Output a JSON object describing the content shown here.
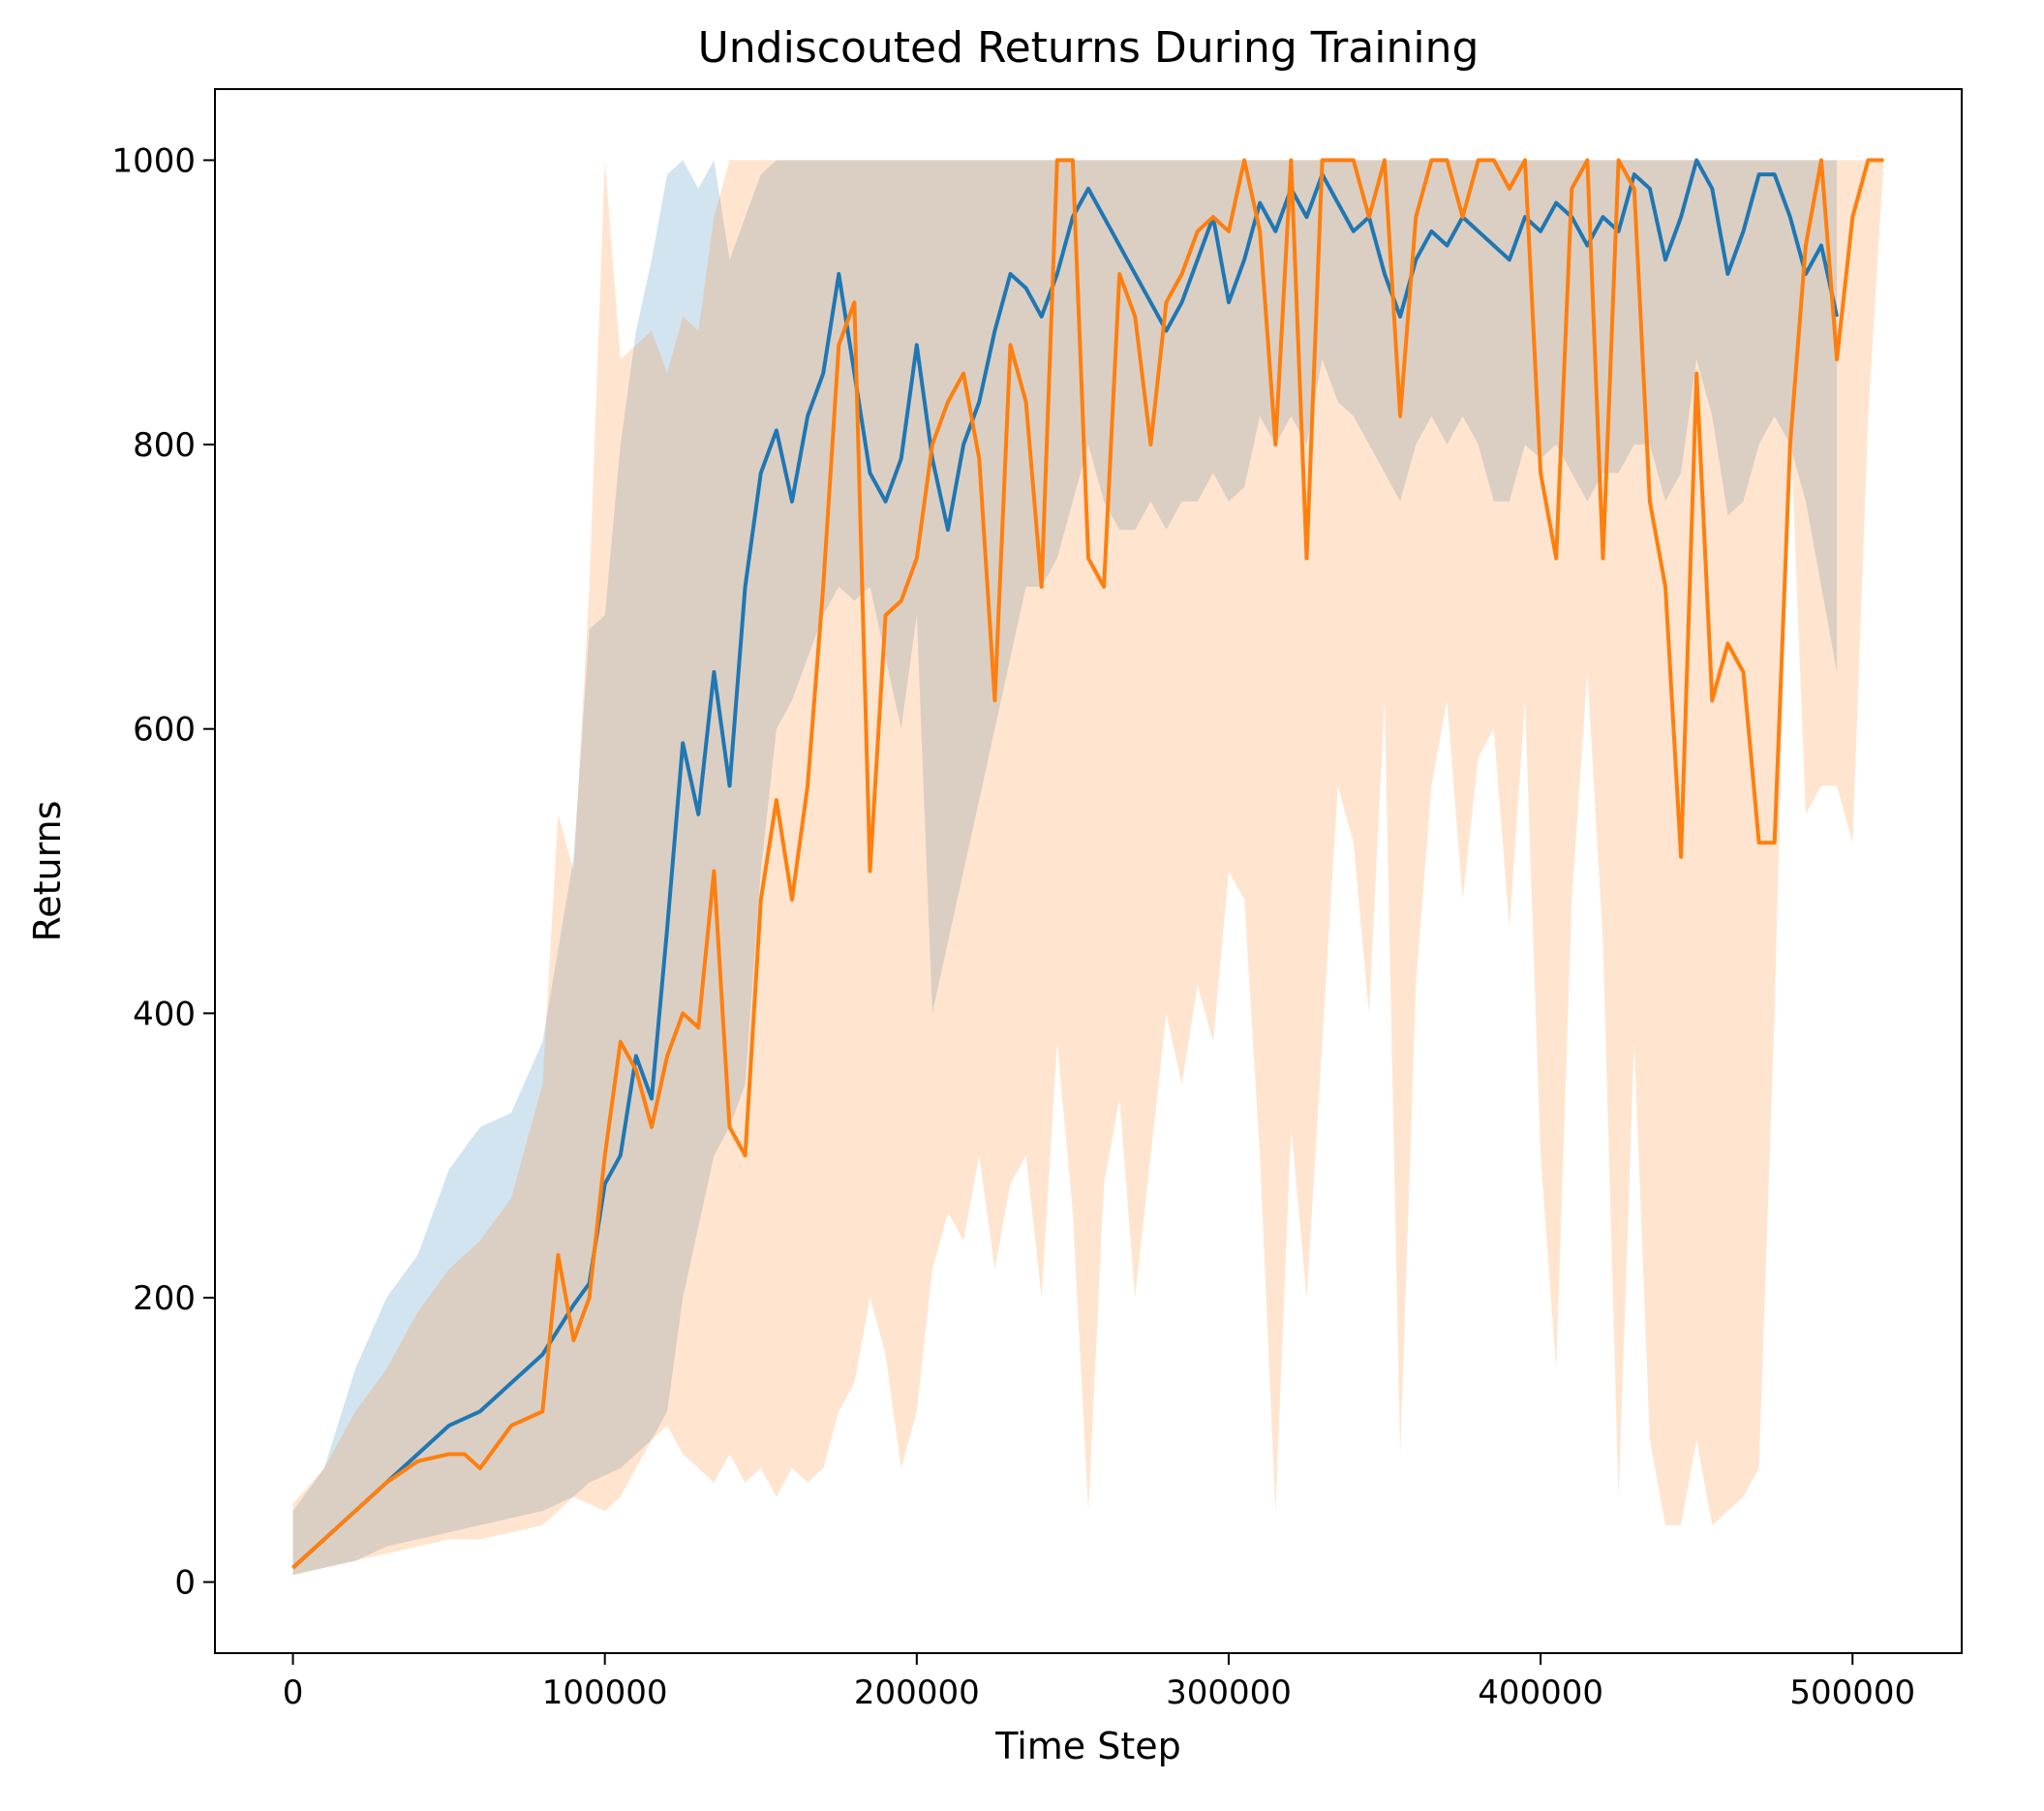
{
  "chart_data": {
    "type": "line",
    "title": "Undiscouted Returns During Training",
    "xlabel": "Time Step",
    "ylabel": "Returns",
    "xlim": [
      -25000,
      535000
    ],
    "ylim": [
      -50,
      1050
    ],
    "xticks": [
      0,
      100000,
      200000,
      300000,
      400000,
      500000
    ],
    "xtick_labels": [
      "0",
      "100000",
      "200000",
      "300000",
      "400000",
      "500000"
    ],
    "yticks": [
      0,
      200,
      400,
      600,
      800,
      1000
    ],
    "ytick_labels": [
      "0",
      "200",
      "400",
      "600",
      "800",
      "1000"
    ],
    "grid": false,
    "legend": false,
    "series": [
      {
        "color": "#1f77b4",
        "band_color": "#1f77b4",
        "band_opacity": 0.2,
        "x": [
          0,
          10000,
          20000,
          30000,
          40000,
          50000,
          60000,
          70000,
          80000,
          90000,
          95000,
          100000,
          105000,
          110000,
          115000,
          120000,
          125000,
          130000,
          135000,
          140000,
          145000,
          150000,
          155000,
          160000,
          165000,
          170000,
          175000,
          180000,
          185000,
          190000,
          195000,
          200000,
          205000,
          210000,
          215000,
          220000,
          225000,
          230000,
          235000,
          240000,
          245000,
          250000,
          255000,
          260000,
          265000,
          270000,
          275000,
          280000,
          285000,
          290000,
          295000,
          300000,
          305000,
          310000,
          315000,
          320000,
          325000,
          330000,
          335000,
          340000,
          345000,
          350000,
          355000,
          360000,
          365000,
          370000,
          375000,
          380000,
          385000,
          390000,
          395000,
          400000,
          405000,
          410000,
          415000,
          420000,
          425000,
          430000,
          435000,
          440000,
          445000,
          450000,
          455000,
          460000,
          465000,
          470000,
          475000,
          480000,
          485000,
          490000,
          495000
        ],
        "y": [
          10,
          30,
          50,
          70,
          90,
          110,
          120,
          140,
          160,
          195,
          210,
          280,
          300,
          370,
          340,
          460,
          590,
          540,
          640,
          560,
          700,
          780,
          810,
          760,
          820,
          850,
          920,
          850,
          780,
          760,
          790,
          870,
          790,
          740,
          800,
          830,
          880,
          920,
          910,
          890,
          920,
          960,
          980,
          960,
          940,
          920,
          900,
          880,
          900,
          930,
          960,
          900,
          930,
          970,
          950,
          980,
          960,
          990,
          970,
          950,
          960,
          920,
          890,
          930,
          950,
          940,
          960,
          950,
          940,
          930,
          960,
          950,
          970,
          960,
          940,
          960,
          950,
          990,
          980,
          930,
          960,
          1000,
          980,
          920,
          950,
          990,
          990,
          960,
          920,
          940,
          890
        ],
        "upper": [
          50,
          80,
          150,
          200,
          230,
          290,
          320,
          330,
          380,
          510,
          670,
          680,
          800,
          880,
          930,
          990,
          1000,
          980,
          1000,
          930,
          960,
          990,
          1000,
          1000,
          1000,
          1000,
          1000,
          1000,
          1000,
          1000,
          1000,
          1000,
          1000,
          1000,
          1000,
          1000,
          1000,
          1000,
          1000,
          1000,
          1000,
          1000,
          1000,
          1000,
          1000,
          1000,
          1000,
          1000,
          1000,
          1000,
          1000,
          1000,
          1000,
          1000,
          1000,
          1000,
          1000,
          1000,
          1000,
          1000,
          1000,
          1000,
          1000,
          1000,
          1000,
          1000,
          1000,
          1000,
          1000,
          1000,
          1000,
          1000,
          1000,
          1000,
          1000,
          1000,
          1000,
          1000,
          1000,
          1000,
          1000,
          1000,
          1000,
          1000,
          1000,
          1000,
          1000,
          1000,
          1000,
          1000,
          1000
        ],
        "lower": [
          5,
          10,
          15,
          25,
          30,
          35,
          40,
          45,
          50,
          60,
          70,
          75,
          80,
          90,
          100,
          120,
          200,
          250,
          300,
          320,
          350,
          500,
          600,
          620,
          650,
          680,
          700,
          690,
          700,
          650,
          600,
          680,
          400,
          450,
          500,
          550,
          600,
          650,
          700,
          700,
          720,
          760,
          800,
          760,
          740,
          740,
          760,
          740,
          760,
          760,
          780,
          760,
          770,
          820,
          800,
          820,
          800,
          860,
          830,
          820,
          800,
          780,
          760,
          800,
          820,
          800,
          820,
          800,
          760,
          760,
          800,
          790,
          800,
          780,
          760,
          780,
          780,
          800,
          800,
          760,
          780,
          860,
          820,
          750,
          760,
          800,
          820,
          800,
          760,
          700,
          640
        ]
      },
      {
        "color": "#ff7f0e",
        "band_color": "#ff7f0e",
        "band_opacity": 0.2,
        "x": [
          0,
          10000,
          20000,
          30000,
          40000,
          50000,
          55000,
          60000,
          70000,
          80000,
          85000,
          90000,
          95000,
          100000,
          105000,
          110000,
          115000,
          120000,
          125000,
          130000,
          135000,
          140000,
          145000,
          150000,
          155000,
          160000,
          165000,
          170000,
          175000,
          180000,
          185000,
          190000,
          195000,
          200000,
          205000,
          210000,
          215000,
          220000,
          225000,
          230000,
          235000,
          240000,
          245000,
          250000,
          255000,
          260000,
          265000,
          270000,
          275000,
          280000,
          285000,
          290000,
          295000,
          300000,
          305000,
          310000,
          315000,
          320000,
          325000,
          330000,
          335000,
          340000,
          345000,
          350000,
          355000,
          360000,
          365000,
          370000,
          375000,
          380000,
          385000,
          390000,
          395000,
          400000,
          405000,
          410000,
          415000,
          420000,
          425000,
          430000,
          435000,
          440000,
          445000,
          450000,
          455000,
          460000,
          465000,
          470000,
          475000,
          480000,
          485000,
          490000,
          495000,
          500000,
          505000,
          510000
        ],
        "y": [
          10,
          30,
          50,
          70,
          85,
          90,
          90,
          80,
          110,
          120,
          230,
          170,
          200,
          300,
          380,
          360,
          320,
          370,
          400,
          390,
          500,
          320,
          300,
          480,
          550,
          480,
          560,
          700,
          870,
          900,
          500,
          680,
          690,
          720,
          800,
          830,
          850,
          790,
          620,
          870,
          830,
          700,
          1000,
          1000,
          720,
          700,
          920,
          890,
          800,
          900,
          920,
          950,
          960,
          950,
          1000,
          950,
          800,
          1000,
          720,
          1000,
          1000,
          1000,
          960,
          1000,
          820,
          960,
          1000,
          1000,
          960,
          1000,
          1000,
          980,
          1000,
          780,
          720,
          980,
          1000,
          720,
          1000,
          980,
          760,
          700,
          510,
          850,
          620,
          660,
          640,
          520,
          520,
          800,
          940,
          1000,
          860,
          960,
          1000,
          1000
        ],
        "upper": [
          55,
          80,
          120,
          150,
          190,
          220,
          230,
          240,
          270,
          350,
          540,
          500,
          700,
          1000,
          860,
          870,
          880,
          850,
          890,
          880,
          960,
          1000,
          1000,
          1000,
          1000,
          1000,
          1000,
          1000,
          1000,
          1000,
          1000,
          1000,
          1000,
          1000,
          1000,
          1000,
          1000,
          1000,
          1000,
          1000,
          1000,
          1000,
          1000,
          1000,
          1000,
          1000,
          1000,
          1000,
          1000,
          1000,
          1000,
          1000,
          1000,
          1000,
          1000,
          1000,
          1000,
          1000,
          1000,
          1000,
          1000,
          1000,
          1000,
          1000,
          1000,
          1000,
          1000,
          1000,
          1000,
          1000,
          1000,
          1000,
          1000,
          1000,
          1000,
          1000,
          1000,
          1000,
          1000,
          1000,
          1000,
          1000,
          1000,
          1000,
          1000,
          1000,
          1000,
          1000,
          1000,
          1000,
          1000,
          1000,
          1000,
          1000,
          1000,
          1000
        ],
        "lower": [
          5,
          10,
          15,
          20,
          25,
          30,
          30,
          30,
          35,
          40,
          50,
          60,
          55,
          50,
          60,
          80,
          100,
          110,
          90,
          80,
          70,
          90,
          70,
          80,
          60,
          80,
          70,
          80,
          120,
          140,
          200,
          160,
          80,
          120,
          220,
          260,
          240,
          300,
          220,
          280,
          300,
          200,
          380,
          260,
          50,
          280,
          340,
          200,
          300,
          400,
          350,
          420,
          380,
          500,
          480,
          300,
          50,
          320,
          200,
          380,
          560,
          520,
          400,
          620,
          90,
          420,
          560,
          620,
          480,
          580,
          600,
          460,
          620,
          300,
          150,
          480,
          640,
          450,
          60,
          380,
          100,
          40,
          40,
          100,
          40,
          50,
          60,
          80,
          400,
          820,
          540,
          560,
          560,
          520,
          820,
          1000
        ]
      }
    ]
  }
}
